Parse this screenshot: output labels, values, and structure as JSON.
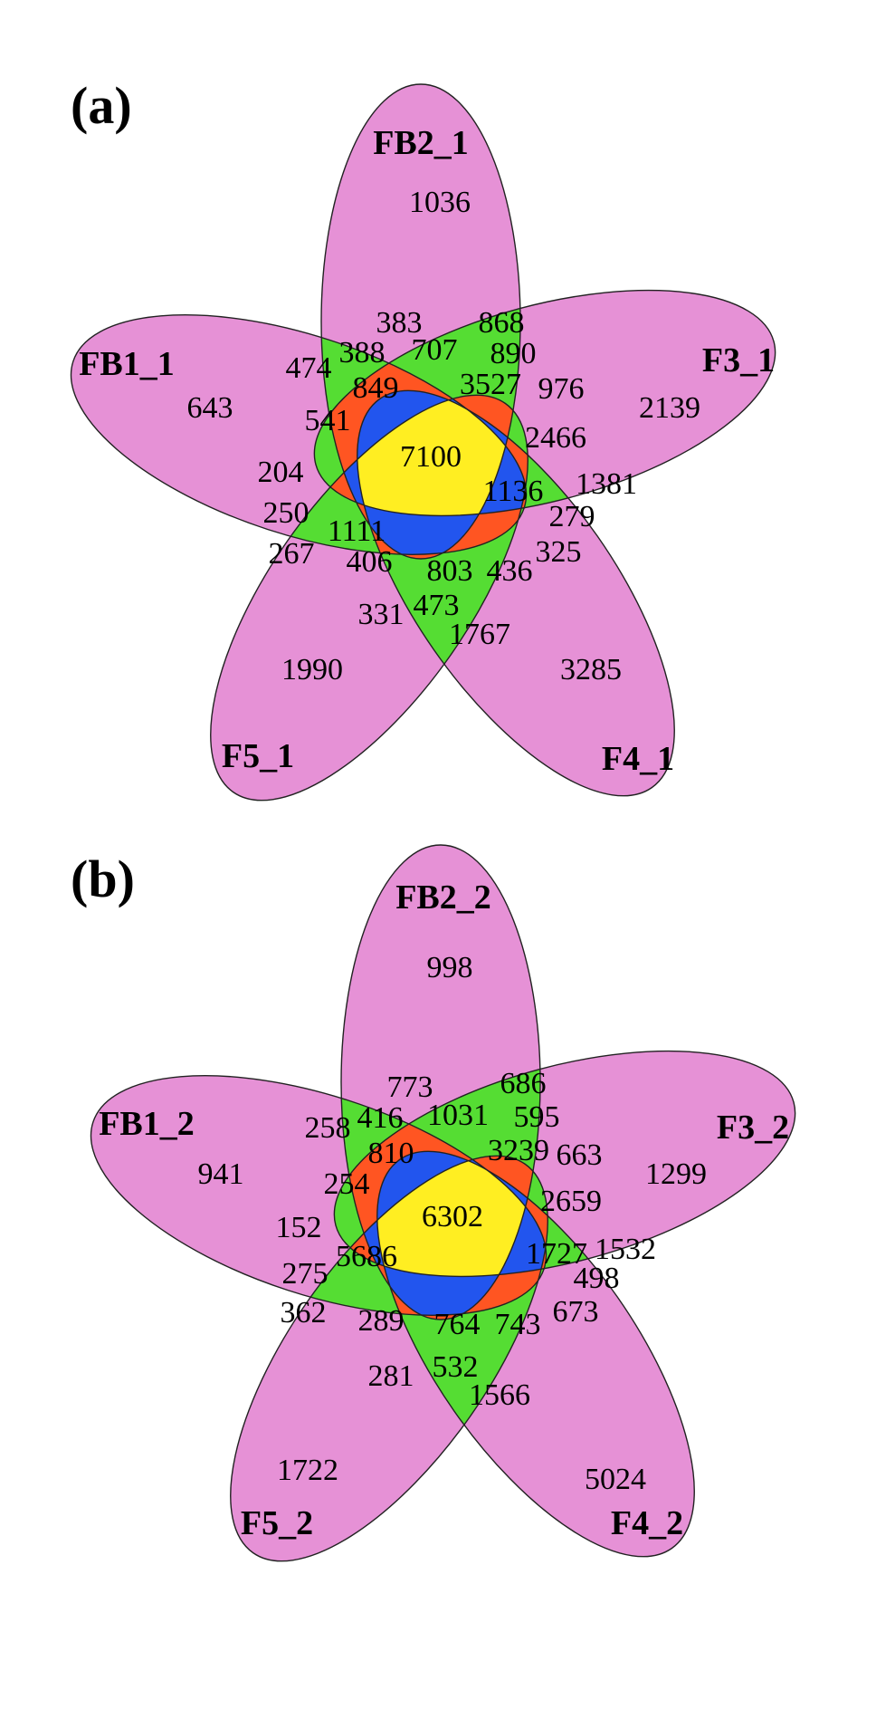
{
  "colors": {
    "one_set": "#e691d6",
    "two_sets": "#55dd33",
    "three_sets": "#ff5522",
    "four_sets": "#2255ee",
    "five_sets": "#ffee22",
    "outline": "#222222"
  },
  "panels": [
    {
      "letter": "(a)",
      "sets": [
        "FB2_1",
        "FB1_1",
        "F3_1",
        "F5_1",
        "F4_1"
      ],
      "regions": {
        "r0": "1036",
        "r1": "643",
        "r2": "2139",
        "r3": "1990",
        "r4": "3285",
        "r5": "7100",
        "r6": "383",
        "r7": "868",
        "r8": "474",
        "r9": "388",
        "r10": "707",
        "r11": "890",
        "r12": "849",
        "r13": "3527",
        "r14": "976",
        "r15": "541",
        "r16": "2466",
        "r17": "204",
        "r18": "1136",
        "r19": "1381",
        "r20": "250",
        "r21": "1111",
        "r22": "279",
        "r23": "267",
        "r24": "406",
        "r25": "803",
        "r26": "436",
        "r27": "325",
        "r28": "331",
        "r29": "473",
        "r30": "1767"
      }
    },
    {
      "letter": "(b)",
      "sets": [
        "FB2_2",
        "FB1_2",
        "F3_2",
        "F5_2",
        "F4_2"
      ],
      "regions": {
        "r0": "998",
        "r1": "941",
        "r2": "1299",
        "r3": "1722",
        "r4": "5024",
        "r5": "6302",
        "r6": "773",
        "r7": "686",
        "r8": "258",
        "r9": "416",
        "r10": "1031",
        "r11": "595",
        "r12": "810",
        "r13": "3239",
        "r14": "663",
        "r15": "254",
        "r16": "2659",
        "r17": "152",
        "r18": "1727",
        "r19": "1532",
        "r20": "275",
        "r21": "5686",
        "r22": "498",
        "r23": "362",
        "r24": "289",
        "r25": "764",
        "r26": "743",
        "r27": "673",
        "r28": "281",
        "r29": "532",
        "r30": "1566"
      }
    }
  ]
}
